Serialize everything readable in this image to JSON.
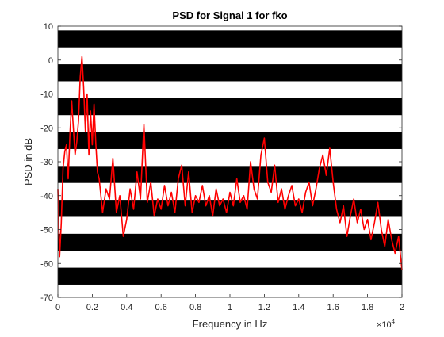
{
  "chart_data": {
    "type": "line",
    "title": "PSD for Signal 1 for fko",
    "xlabel": "Frequency in Hz",
    "ylabel": "PSD in dB",
    "x_scale_exponent_label": "×10",
    "x_scale_exponent_power": "4",
    "xlim": [
      0,
      2
    ],
    "ylim": [
      -70,
      10
    ],
    "x_ticks": [
      0,
      0.2,
      0.4,
      0.6,
      0.8,
      1,
      1.2,
      1.4,
      1.6,
      1.8,
      2
    ],
    "x_tick_labels": [
      "0",
      "0.2",
      "0.4",
      "0.6",
      "0.8",
      "1",
      "1.2",
      "1.4",
      "1.6",
      "1.8",
      "2"
    ],
    "y_ticks": [
      10,
      0,
      -10,
      -20,
      -30,
      -40,
      -50,
      -60,
      -70
    ],
    "y_tick_labels": [
      "10",
      "0",
      "-10",
      "-20",
      "-30",
      "-40",
      "-50",
      "-60",
      "-70"
    ],
    "grid": false,
    "legend": "none",
    "band_color": "#000000",
    "band_period_db": 5,
    "line_color": "#ff0000",
    "series": [
      {
        "x": [
          0,
          0.01,
          0.02,
          0.03,
          0.04,
          0.05,
          0.06,
          0.07,
          0.08,
          0.09,
          0.1,
          0.11,
          0.12,
          0.13,
          0.14,
          0.15,
          0.16,
          0.17,
          0.18,
          0.19,
          0.2,
          0.21,
          0.22,
          0.23,
          0.24,
          0.26,
          0.28,
          0.3,
          0.32,
          0.34,
          0.36,
          0.38,
          0.4,
          0.42,
          0.44,
          0.46,
          0.48,
          0.5,
          0.52,
          0.54,
          0.56,
          0.58,
          0.6,
          0.62,
          0.64,
          0.66,
          0.68,
          0.7,
          0.72,
          0.74,
          0.76,
          0.78,
          0.8,
          0.82,
          0.84,
          0.86,
          0.88,
          0.9,
          0.92,
          0.94,
          0.96,
          0.98,
          1,
          1.02,
          1.04,
          1.06,
          1.08,
          1.1,
          1.12,
          1.14,
          1.16,
          1.18,
          1.2,
          1.22,
          1.24,
          1.26,
          1.28,
          1.3,
          1.32,
          1.34,
          1.36,
          1.38,
          1.4,
          1.42,
          1.44,
          1.46,
          1.48,
          1.5,
          1.52,
          1.54,
          1.56,
          1.58,
          1.6,
          1.62,
          1.64,
          1.66,
          1.68,
          1.7,
          1.72,
          1.74,
          1.76,
          1.78,
          1.8,
          1.82,
          1.84,
          1.86,
          1.88,
          1.9,
          1.92,
          1.94,
          1.96,
          1.98,
          2
        ],
        "y": [
          -38,
          -58,
          -48,
          -32,
          -27,
          -25,
          -35,
          -22,
          -12,
          -20,
          -28,
          -24,
          -18,
          -5,
          1,
          -8,
          -21,
          -10,
          -28,
          -15,
          -25,
          -13,
          -24,
          -33,
          -35,
          -45,
          -38,
          -41,
          -29,
          -45,
          -40,
          -52,
          -47,
          -38,
          -44,
          -33,
          -41,
          -19,
          -42,
          -36,
          -46,
          -41,
          -44,
          -37,
          -43,
          -39,
          -45,
          -35,
          -31,
          -43,
          -33,
          -45,
          -40,
          -42,
          -37,
          -43,
          -40,
          -46,
          -38,
          -43,
          -41,
          -45,
          -39,
          -43,
          -35,
          -42,
          -40,
          -44,
          -30,
          -38,
          -41,
          -28,
          -23,
          -36,
          -39,
          -31,
          -42,
          -38,
          -44,
          -40,
          -37,
          -43,
          -41,
          -45,
          -39,
          -36,
          -43,
          -38,
          -32,
          -28,
          -34,
          -26,
          -36,
          -44,
          -48,
          -43,
          -52,
          -46,
          -41,
          -48,
          -44,
          -50,
          -47,
          -53,
          -48,
          -42,
          -50,
          -55,
          -47,
          -53,
          -57,
          -52,
          -62
        ]
      }
    ]
  }
}
